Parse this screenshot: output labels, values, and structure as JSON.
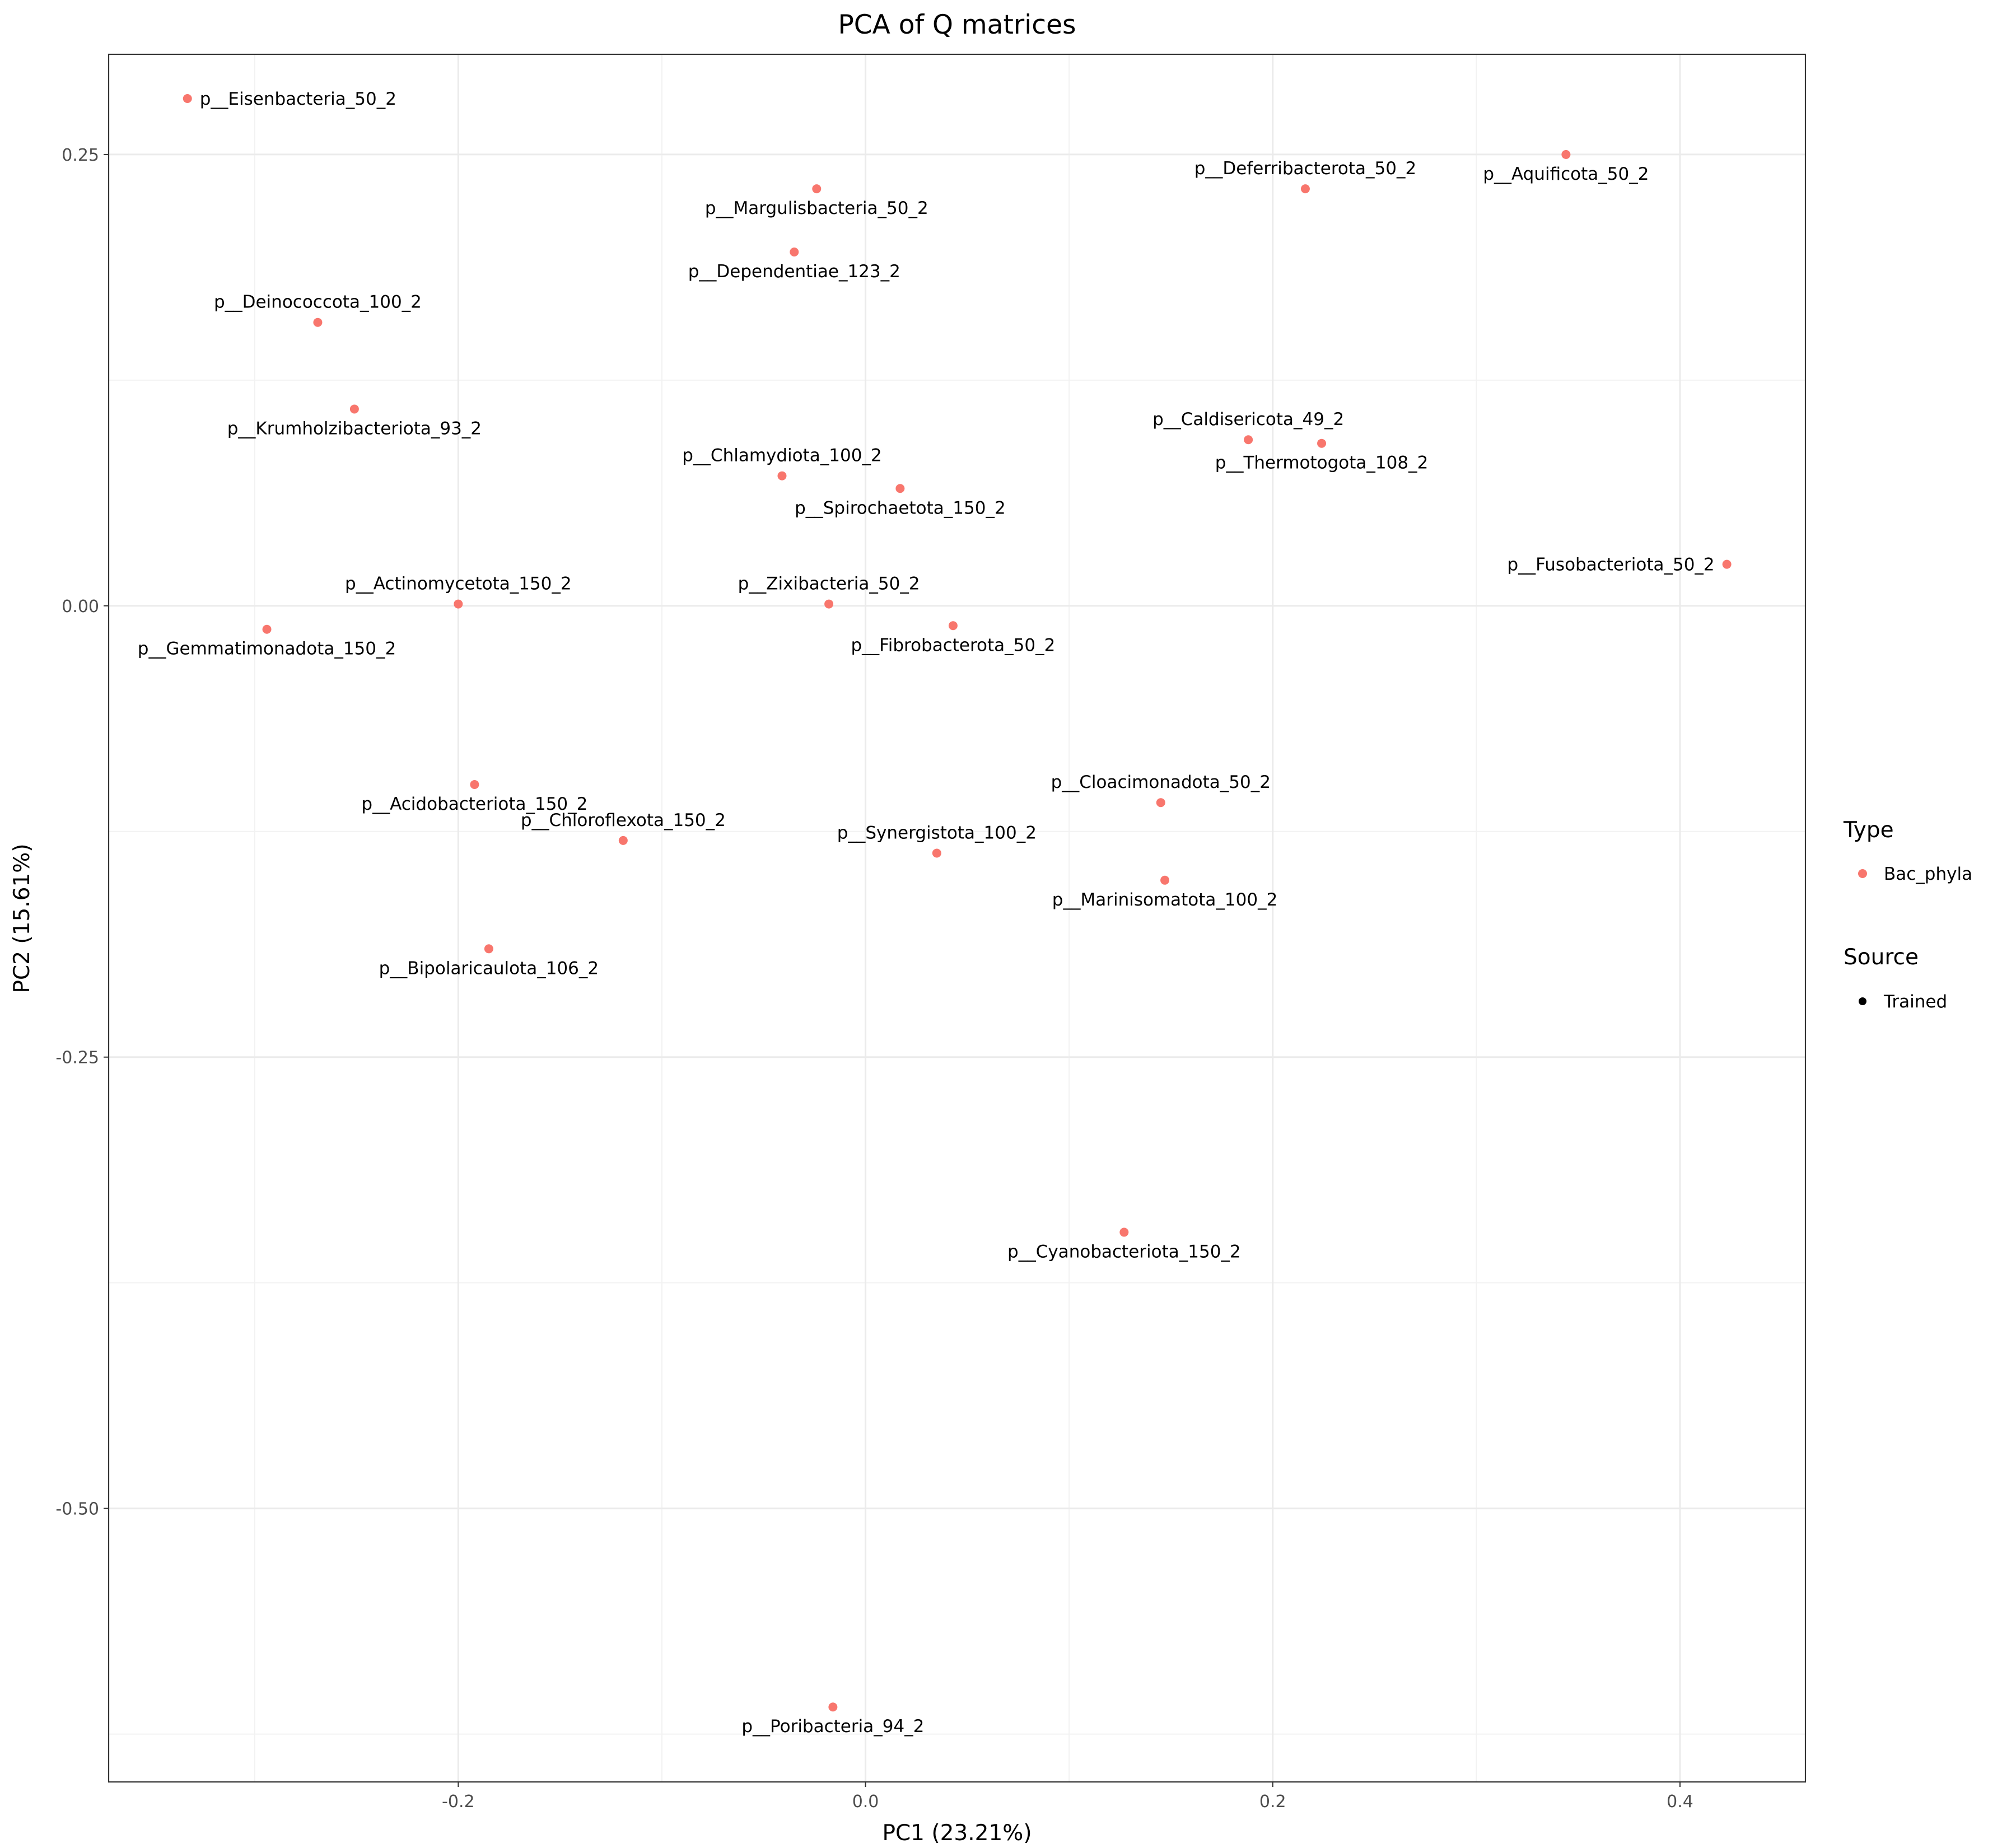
{
  "chart_data": {
    "type": "scatter",
    "title": "PCA of Q matrices",
    "xlabel": "PC1 (23.21%)",
    "ylabel": "PC2 (15.61%)",
    "xlim": [
      -0.3717,
      0.4616
    ],
    "ylim": [
      -0.6515,
      0.3055
    ],
    "x_ticks": [
      -0.2,
      0.0,
      0.2,
      0.4
    ],
    "x_tick_labels": [
      "-0.2",
      "0.0",
      "0.2",
      "0.4"
    ],
    "x_minor": [
      -0.3,
      -0.1,
      0.1,
      0.3
    ],
    "y_ticks": [
      0.25,
      0.0,
      -0.25,
      -0.5
    ],
    "y_tick_labels": [
      "0.25",
      "0.00",
      "-0.25",
      "-0.50"
    ],
    "y_minor": [
      0.125,
      -0.125,
      -0.375,
      -0.625
    ],
    "grid": true,
    "point_color": "#F8766D",
    "legend": {
      "placement": "right",
      "type_title": "Type",
      "type_entries": [
        {
          "label": "Bac_phyla",
          "color": "#F8766D"
        }
      ],
      "source_title": "Source",
      "source_entries": [
        {
          "label": "Trained",
          "color": "#000000"
        }
      ]
    },
    "points": [
      {
        "label": "p__Eisenbacteria_50_2",
        "x": -0.333,
        "y": 0.281,
        "anchor": "start"
      },
      {
        "label": "p__Aquificota_50_2",
        "x": 0.344,
        "y": 0.25,
        "anchor": "middle"
      },
      {
        "label": "p__Deferribacterota_50_2",
        "x": 0.216,
        "y": 0.231,
        "anchor": "middle"
      },
      {
        "label": "p__Margulisbacteria_50_2",
        "x": -0.024,
        "y": 0.231,
        "anchor": "middle"
      },
      {
        "label": "p__Dependentiae_123_2",
        "x": -0.035,
        "y": 0.196,
        "anchor": "middle"
      },
      {
        "label": "p__Deinococcota_100_2",
        "x": -0.269,
        "y": 0.157,
        "anchor": "middle"
      },
      {
        "label": "p__Krumholzibacteriota_93_2",
        "x": -0.251,
        "y": 0.109,
        "anchor": "middle"
      },
      {
        "label": "p__Caldisericota_49_2",
        "x": 0.188,
        "y": 0.092,
        "anchor": "middle"
      },
      {
        "label": "p__Thermotogota_108_2",
        "x": 0.224,
        "y": 0.09,
        "anchor": "middle"
      },
      {
        "label": "p__Chlamydiota_100_2",
        "x": -0.041,
        "y": 0.072,
        "anchor": "middle"
      },
      {
        "label": "p__Spirochaetota_150_2",
        "x": 0.017,
        "y": 0.065,
        "anchor": "middle"
      },
      {
        "label": "p__Fusobacteriota_50_2",
        "x": 0.423,
        "y": 0.023,
        "anchor": "end"
      },
      {
        "label": "p__Actinomycetota_150_2",
        "x": -0.2,
        "y": 0.001,
        "anchor": "middle"
      },
      {
        "label": "p__Zixibacteria_50_2",
        "x": -0.018,
        "y": 0.001,
        "anchor": "middle"
      },
      {
        "label": "p__Fibrobacterota_50_2",
        "x": 0.043,
        "y": -0.011,
        "anchor": "middle"
      },
      {
        "label": "p__Gemmatimonadota_150_2",
        "x": -0.294,
        "y": -0.013,
        "anchor": "middle"
      },
      {
        "label": "p__Acidobacteriota_150_2",
        "x": -0.192,
        "y": -0.099,
        "anchor": "middle"
      },
      {
        "label": "p__Cloacimonadota_50_2",
        "x": 0.145,
        "y": -0.109,
        "anchor": "middle"
      },
      {
        "label": "p__Chloroflexota_150_2",
        "x": -0.119,
        "y": -0.13,
        "anchor": "middle"
      },
      {
        "label": "p__Synergistota_100_2",
        "x": 0.035,
        "y": -0.137,
        "anchor": "middle"
      },
      {
        "label": "p__Marinisomatota_100_2",
        "x": 0.147,
        "y": -0.152,
        "anchor": "middle"
      },
      {
        "label": "p__Bipolaricaulota_106_2",
        "x": -0.185,
        "y": -0.19,
        "anchor": "middle"
      },
      {
        "label": "p__Cyanobacteriota_150_2",
        "x": 0.127,
        "y": -0.347,
        "anchor": "middle"
      },
      {
        "label": "p__Poribacteria_94_2",
        "x": -0.016,
        "y": -0.61,
        "anchor": "middle"
      }
    ]
  }
}
